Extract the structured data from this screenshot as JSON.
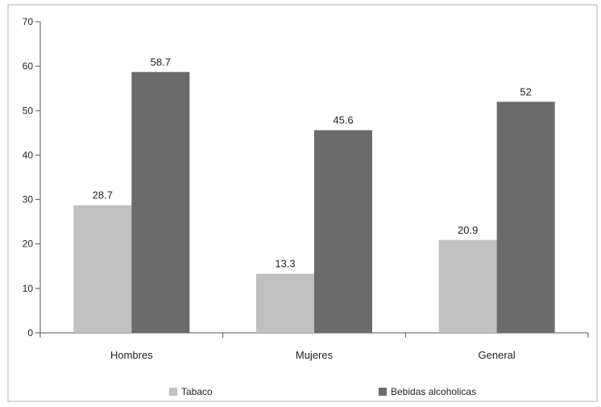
{
  "chart_data": {
    "type": "bar",
    "categories": [
      "Hombres",
      "Mujeres",
      "General"
    ],
    "series": [
      {
        "name": "Tabaco",
        "values": [
          28.7,
          13.3,
          20.9
        ],
        "color": "#c0c0c0"
      },
      {
        "name": "Bebidas alcoholicas",
        "values": [
          58.7,
          45.6,
          52
        ],
        "color": "#6b6b6b"
      }
    ],
    "data_labels": [
      [
        "28.7",
        "13.3",
        "20.9"
      ],
      [
        "58.7",
        "45.6",
        "52"
      ]
    ],
    "ylim": [
      0,
      70
    ],
    "yticks": [
      0,
      10,
      20,
      30,
      40,
      50,
      60,
      70
    ],
    "grid": false,
    "legend_position": "bottom"
  }
}
